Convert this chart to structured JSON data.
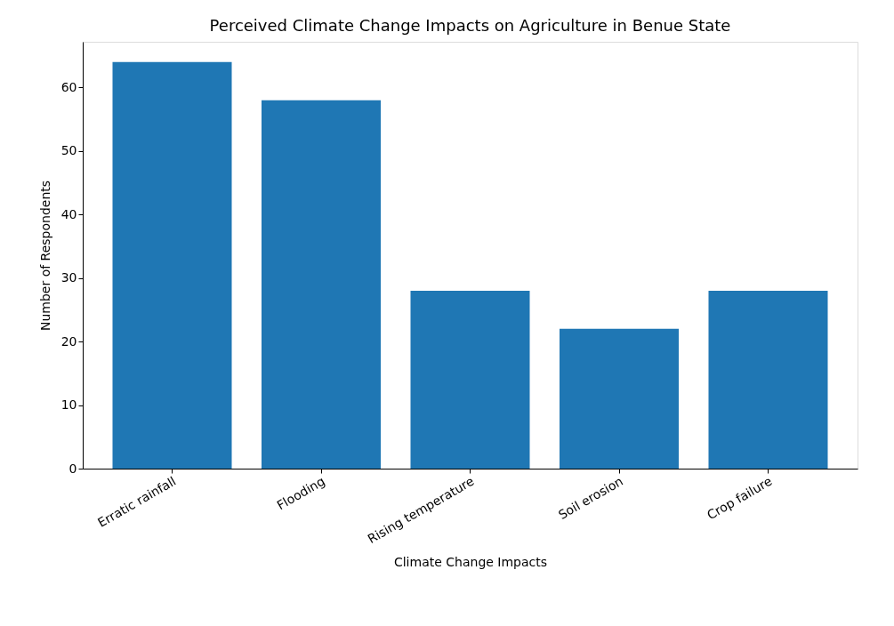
{
  "chart_data": {
    "type": "bar",
    "title": "Perceived Climate Change Impacts on Agriculture in Benue State",
    "xlabel": "Climate Change Impacts",
    "ylabel": "Number of Respondents",
    "categories": [
      "Erratic rainfall",
      "Flooding",
      "Rising temperature",
      "Soil erosion",
      "Crop failure"
    ],
    "values": [
      64,
      58,
      28,
      22,
      28
    ],
    "color": "#1f77b4",
    "ylim": [
      0,
      67.2
    ],
    "yticks": [
      0,
      10,
      20,
      30,
      40,
      50,
      60
    ],
    "grid": false
  }
}
